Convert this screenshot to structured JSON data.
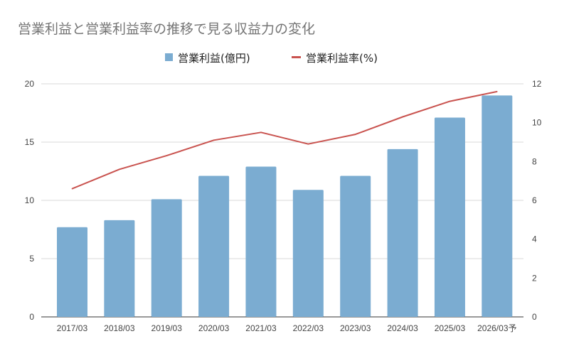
{
  "chart_data": {
    "type": "bar+line",
    "title": "営業利益と営業利益率の推移で見る収益力の変化",
    "categories": [
      "2017/03",
      "2018/03",
      "2019/03",
      "2020/03",
      "2021/03",
      "2022/03",
      "2023/03",
      "2024/03",
      "2025/03",
      "2026/03予"
    ],
    "series": [
      {
        "name": "営業利益(億円)",
        "type": "bar",
        "axis": "left",
        "color": "#7bacd1",
        "values": [
          7.7,
          8.3,
          10.1,
          12.1,
          12.9,
          10.9,
          12.1,
          14.4,
          17.1,
          19.0
        ]
      },
      {
        "name": "営業利益率(%)",
        "type": "line",
        "axis": "right",
        "color": "#c9534f",
        "values": [
          6.6,
          7.6,
          8.3,
          9.1,
          9.5,
          8.9,
          9.4,
          10.3,
          11.1,
          11.6
        ]
      }
    ],
    "left_axis": {
      "ylim": [
        0,
        20
      ],
      "ticks": [
        "0",
        "5",
        "10",
        "15",
        "20"
      ]
    },
    "right_axis": {
      "ylim": [
        0,
        12
      ],
      "ticks": [
        "0",
        "2",
        "4",
        "6",
        "8",
        "10",
        "12"
      ]
    },
    "legend_position": "top-center",
    "grid": true
  }
}
